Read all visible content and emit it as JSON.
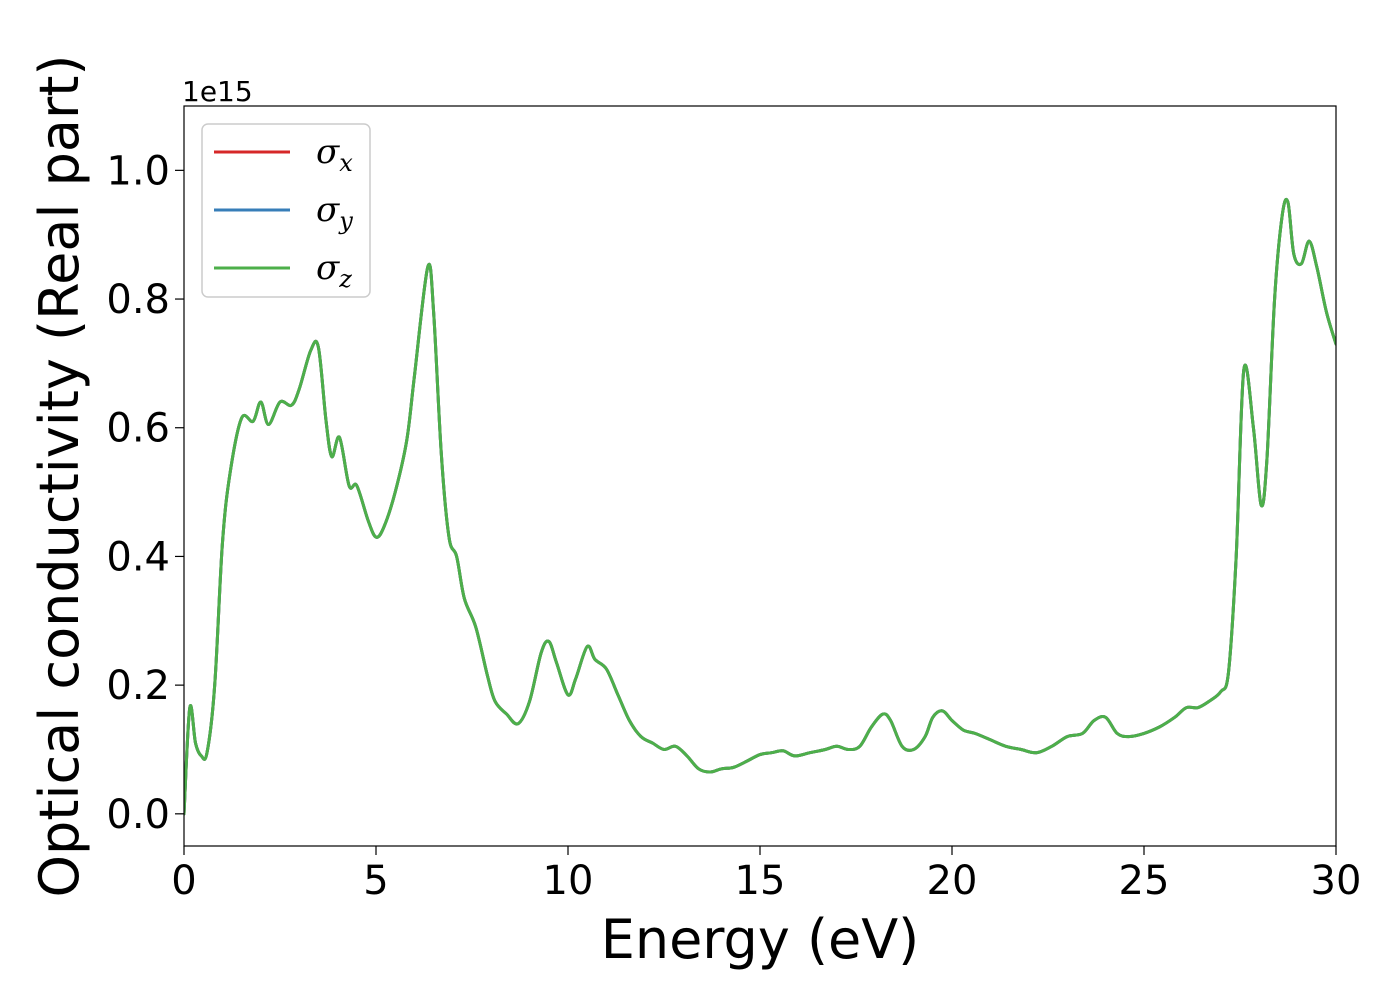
{
  "chart_data": {
    "type": "line",
    "title": "",
    "xlabel": "Energy (eV)",
    "ylabel": "Optical conductivity (Real part)",
    "y_offset_label": "1e15",
    "xlim": [
      0,
      30
    ],
    "ylim": [
      -0.05,
      1.1
    ],
    "x_ticks": [
      0,
      5,
      10,
      15,
      20,
      25,
      30
    ],
    "x_tick_labels": [
      "0",
      "5",
      "10",
      "15",
      "20",
      "25",
      "30"
    ],
    "y_ticks": [
      0.0,
      0.2,
      0.4,
      0.6,
      0.8,
      1.0
    ],
    "y_tick_labels": [
      "0.0",
      "0.2",
      "0.4",
      "0.6",
      "0.8",
      "1.0"
    ],
    "grid": false,
    "legend_position": "top-left",
    "x": [
      0,
      0.15,
      0.3,
      0.45,
      0.6,
      0.8,
      1.0,
      1.2,
      1.5,
      1.8,
      2.0,
      2.2,
      2.5,
      2.8,
      3.0,
      3.3,
      3.5,
      3.7,
      3.85,
      4.05,
      4.3,
      4.5,
      4.8,
      5.0,
      5.2,
      5.5,
      5.8,
      6.0,
      6.35,
      6.5,
      6.7,
      6.9,
      7.1,
      7.3,
      7.6,
      7.9,
      8.1,
      8.4,
      8.7,
      9.0,
      9.3,
      9.5,
      9.7,
      10.0,
      10.2,
      10.5,
      10.7,
      11.0,
      11.3,
      11.6,
      11.9,
      12.2,
      12.5,
      12.8,
      13.1,
      13.4,
      13.7,
      14.0,
      14.3,
      14.6,
      15.0,
      15.3,
      15.6,
      15.9,
      16.3,
      16.7,
      17.0,
      17.3,
      17.6,
      17.9,
      18.2,
      18.4,
      18.7,
      19.0,
      19.3,
      19.5,
      19.75,
      20.0,
      20.3,
      20.6,
      21.0,
      21.4,
      21.8,
      22.2,
      22.6,
      23.0,
      23.4,
      23.7,
      24.0,
      24.3,
      24.6,
      25.0,
      25.4,
      25.8,
      26.1,
      26.4,
      26.7,
      27.0,
      27.2,
      27.4,
      27.6,
      27.85,
      28.05,
      28.2,
      28.4,
      28.6,
      28.75,
      28.9,
      29.1,
      29.3,
      29.5,
      29.75,
      30.0
    ],
    "series": [
      {
        "name": "σx",
        "label_symbol": "σ",
        "label_sub": "x",
        "color": "#d62728",
        "values": [
          0.0,
          0.165,
          0.11,
          0.09,
          0.095,
          0.2,
          0.42,
          0.53,
          0.615,
          0.61,
          0.64,
          0.605,
          0.64,
          0.635,
          0.66,
          0.72,
          0.725,
          0.61,
          0.555,
          0.585,
          0.51,
          0.51,
          0.455,
          0.43,
          0.445,
          0.5,
          0.58,
          0.68,
          0.85,
          0.78,
          0.56,
          0.43,
          0.4,
          0.335,
          0.29,
          0.215,
          0.175,
          0.155,
          0.14,
          0.175,
          0.25,
          0.268,
          0.235,
          0.185,
          0.21,
          0.26,
          0.24,
          0.225,
          0.185,
          0.145,
          0.12,
          0.11,
          0.1,
          0.105,
          0.09,
          0.07,
          0.065,
          0.07,
          0.072,
          0.08,
          0.092,
          0.095,
          0.098,
          0.09,
          0.095,
          0.1,
          0.105,
          0.1,
          0.105,
          0.135,
          0.155,
          0.145,
          0.105,
          0.1,
          0.12,
          0.15,
          0.16,
          0.145,
          0.13,
          0.125,
          0.115,
          0.105,
          0.1,
          0.095,
          0.105,
          0.12,
          0.125,
          0.145,
          0.15,
          0.125,
          0.12,
          0.125,
          0.135,
          0.15,
          0.165,
          0.165,
          0.175,
          0.19,
          0.22,
          0.4,
          0.69,
          0.6,
          0.48,
          0.55,
          0.8,
          0.93,
          0.95,
          0.87,
          0.855,
          0.89,
          0.85,
          0.78,
          0.73
        ]
      },
      {
        "name": "σy",
        "label_symbol": "σ",
        "label_sub": "y",
        "color": "#377eb8",
        "values": [
          0.0,
          0.165,
          0.11,
          0.09,
          0.095,
          0.2,
          0.42,
          0.53,
          0.615,
          0.61,
          0.64,
          0.605,
          0.64,
          0.635,
          0.66,
          0.72,
          0.725,
          0.61,
          0.555,
          0.585,
          0.51,
          0.51,
          0.455,
          0.43,
          0.445,
          0.5,
          0.58,
          0.68,
          0.85,
          0.78,
          0.56,
          0.43,
          0.4,
          0.335,
          0.29,
          0.215,
          0.175,
          0.155,
          0.14,
          0.175,
          0.25,
          0.268,
          0.235,
          0.185,
          0.21,
          0.26,
          0.24,
          0.225,
          0.185,
          0.145,
          0.12,
          0.11,
          0.1,
          0.105,
          0.09,
          0.07,
          0.065,
          0.07,
          0.072,
          0.08,
          0.092,
          0.095,
          0.098,
          0.09,
          0.095,
          0.1,
          0.105,
          0.1,
          0.105,
          0.135,
          0.155,
          0.145,
          0.105,
          0.1,
          0.12,
          0.15,
          0.16,
          0.145,
          0.13,
          0.125,
          0.115,
          0.105,
          0.1,
          0.095,
          0.105,
          0.12,
          0.125,
          0.145,
          0.15,
          0.125,
          0.12,
          0.125,
          0.135,
          0.15,
          0.165,
          0.165,
          0.175,
          0.19,
          0.22,
          0.4,
          0.69,
          0.6,
          0.48,
          0.55,
          0.8,
          0.93,
          0.95,
          0.87,
          0.855,
          0.89,
          0.85,
          0.78,
          0.73
        ]
      },
      {
        "name": "σz",
        "label_symbol": "σ",
        "label_sub": "z",
        "color": "#4daf4a",
        "values": [
          0.0,
          0.165,
          0.11,
          0.09,
          0.095,
          0.2,
          0.42,
          0.53,
          0.615,
          0.61,
          0.64,
          0.605,
          0.64,
          0.635,
          0.66,
          0.72,
          0.725,
          0.61,
          0.555,
          0.585,
          0.51,
          0.51,
          0.455,
          0.43,
          0.445,
          0.5,
          0.58,
          0.68,
          0.85,
          0.78,
          0.56,
          0.43,
          0.4,
          0.335,
          0.29,
          0.215,
          0.175,
          0.155,
          0.14,
          0.175,
          0.25,
          0.268,
          0.235,
          0.185,
          0.21,
          0.26,
          0.24,
          0.225,
          0.185,
          0.145,
          0.12,
          0.11,
          0.1,
          0.105,
          0.09,
          0.07,
          0.065,
          0.07,
          0.072,
          0.08,
          0.092,
          0.095,
          0.098,
          0.09,
          0.095,
          0.1,
          0.105,
          0.1,
          0.105,
          0.135,
          0.155,
          0.145,
          0.105,
          0.1,
          0.12,
          0.15,
          0.16,
          0.145,
          0.13,
          0.125,
          0.115,
          0.105,
          0.1,
          0.095,
          0.105,
          0.12,
          0.125,
          0.145,
          0.15,
          0.125,
          0.12,
          0.125,
          0.135,
          0.15,
          0.165,
          0.165,
          0.175,
          0.19,
          0.22,
          0.4,
          0.69,
          0.6,
          0.48,
          0.55,
          0.8,
          0.93,
          0.95,
          0.87,
          0.855,
          0.89,
          0.85,
          0.78,
          0.73
        ]
      }
    ]
  }
}
